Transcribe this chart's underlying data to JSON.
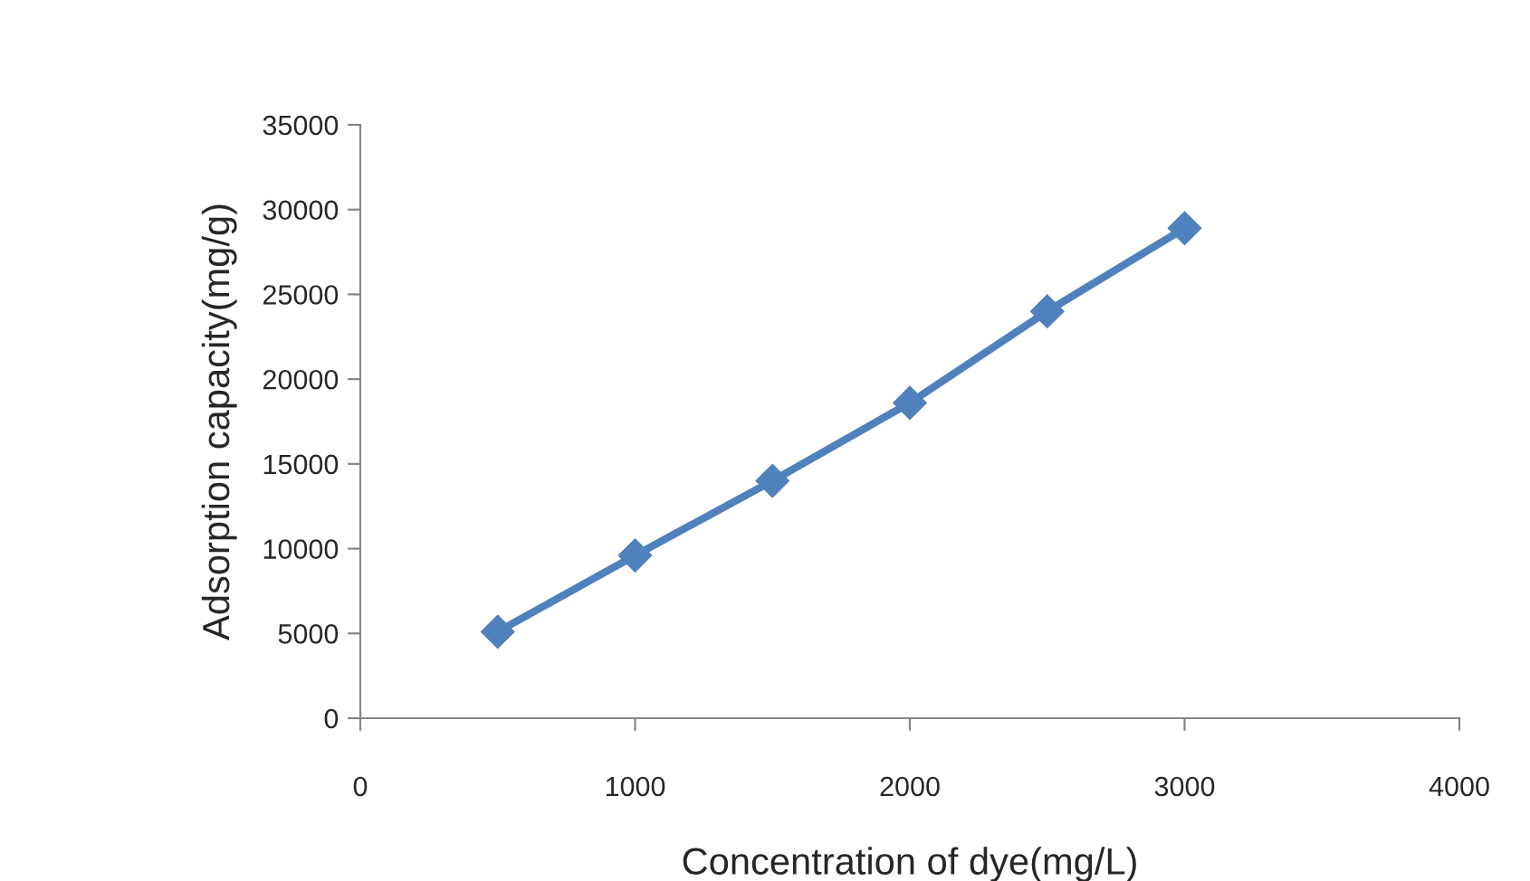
{
  "chart_data": {
    "type": "line",
    "xlabel": "Concentration of dye(mg/L)",
    "ylabel": "Adsorption capacity(mg/g)",
    "x": [
      500,
      1000,
      1500,
      2000,
      2500,
      3000
    ],
    "series": [
      {
        "color": "#4f81bd",
        "values": [
          5100,
          9600,
          14000,
          18600,
          24000,
          28900
        ]
      }
    ],
    "xlim": [
      0,
      4000
    ],
    "xticks": [
      0,
      1000,
      2000,
      3000,
      4000
    ],
    "ylim": [
      0,
      35000
    ],
    "yticks": [
      0,
      5000,
      10000,
      15000,
      20000,
      25000,
      30000,
      35000
    ],
    "grid": false,
    "legend": false,
    "marker": "diamond",
    "line_style": "solid"
  }
}
